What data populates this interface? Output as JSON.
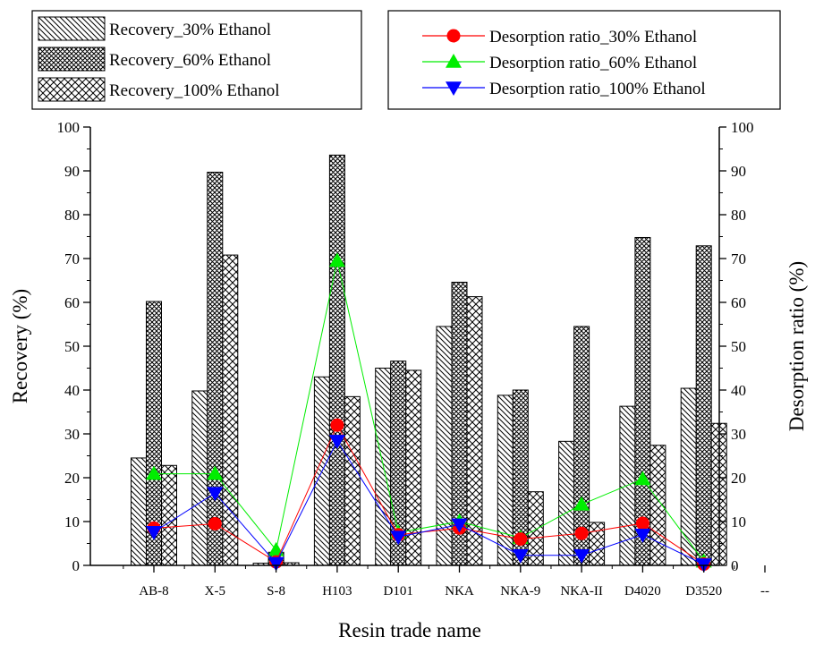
{
  "chart_data": {
    "type": "bar",
    "xlabel": "Resin trade name",
    "ylabel": "Recovery (%)",
    "y2label": "Desorption ratio (%)",
    "ylim": [
      0,
      100
    ],
    "y2lim": [
      0,
      100
    ],
    "yticks": [
      "0",
      "10",
      "20",
      "30",
      "40",
      "50",
      "60",
      "70",
      "80",
      "90",
      "100"
    ],
    "categories": [
      "AB-8",
      "X-5",
      "S-8",
      "H103",
      "D101",
      "NKA",
      "NKA-9",
      "NKA-II",
      "D4020",
      "D3520",
      "--"
    ],
    "bar_series": [
      {
        "name": "Recovery_30% Ethanol",
        "pattern": "diagonal",
        "values": [
          24.5,
          39.8,
          0.5,
          43.0,
          45.0,
          54.5,
          38.8,
          28.3,
          36.3,
          40.4,
          null
        ]
      },
      {
        "name": "Recovery_60% Ethanol",
        "pattern": "dense-crosshatch",
        "values": [
          60.2,
          89.7,
          3.0,
          93.6,
          46.6,
          64.6,
          40.0,
          54.5,
          74.8,
          72.9,
          null
        ]
      },
      {
        "name": "Recovery_100% Ethanol",
        "pattern": "crosshatch",
        "values": [
          22.8,
          70.8,
          0.6,
          38.5,
          44.5,
          61.3,
          16.8,
          9.8,
          27.4,
          32.4,
          null
        ]
      }
    ],
    "line_series": [
      {
        "name": "Desorption ratio_30% Ethanol",
        "color": "#ff0000",
        "marker": "circle",
        "values": [
          8.5,
          9.5,
          0.8,
          32.0,
          7.0,
          8.5,
          6.0,
          7.3,
          9.6,
          0.3
        ]
      },
      {
        "name": "Desorption ratio_60% Ethanol",
        "color": "#00ee00",
        "marker": "triangle-up",
        "values": [
          20.9,
          20.9,
          3.5,
          69.5,
          7.5,
          10.0,
          6.3,
          13.9,
          19.7,
          0.9
        ]
      },
      {
        "name": "Desorption ratio_100% Ethanol",
        "color": "#0000ff",
        "marker": "triangle-down",
        "values": [
          7.6,
          16.5,
          0.5,
          28.4,
          6.5,
          9.3,
          2.3,
          2.3,
          7.0,
          0.2
        ]
      }
    ],
    "legend_placement": "top (two boxes)"
  }
}
